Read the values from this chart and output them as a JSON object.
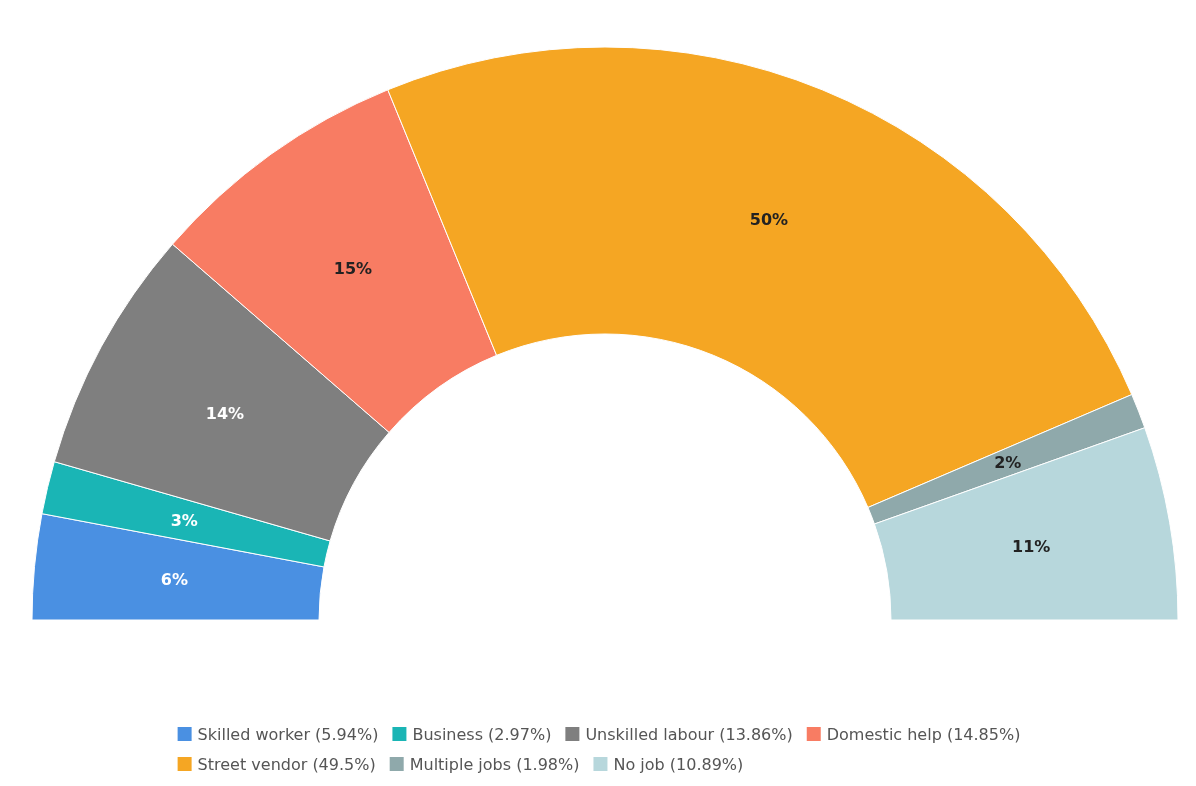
{
  "chart_data": {
    "type": "donut",
    "categories": [
      "Skilled worker (5.94%)",
      "Business (2.97%)",
      "Unskilled labour (13.86%)",
      "Domestic help (14.85%)",
      "Street vendor (49.5%)",
      "Multiple jobs (1.98%)",
      "No job (10.89%)"
    ],
    "values": [
      5.94,
      2.97,
      13.86,
      14.85,
      49.5,
      1.98,
      10.89
    ],
    "colors": [
      "#4a90e2",
      "#1ab5b5",
      "#7f7f7f",
      "#f87c63",
      "#f5a623",
      "#8fa9ab",
      "#b7d7dc"
    ],
    "value_labels": [
      "6%",
      "3%",
      "14%",
      "15%",
      "50%",
      "2%",
      "11%"
    ],
    "legend": "bottom"
  }
}
